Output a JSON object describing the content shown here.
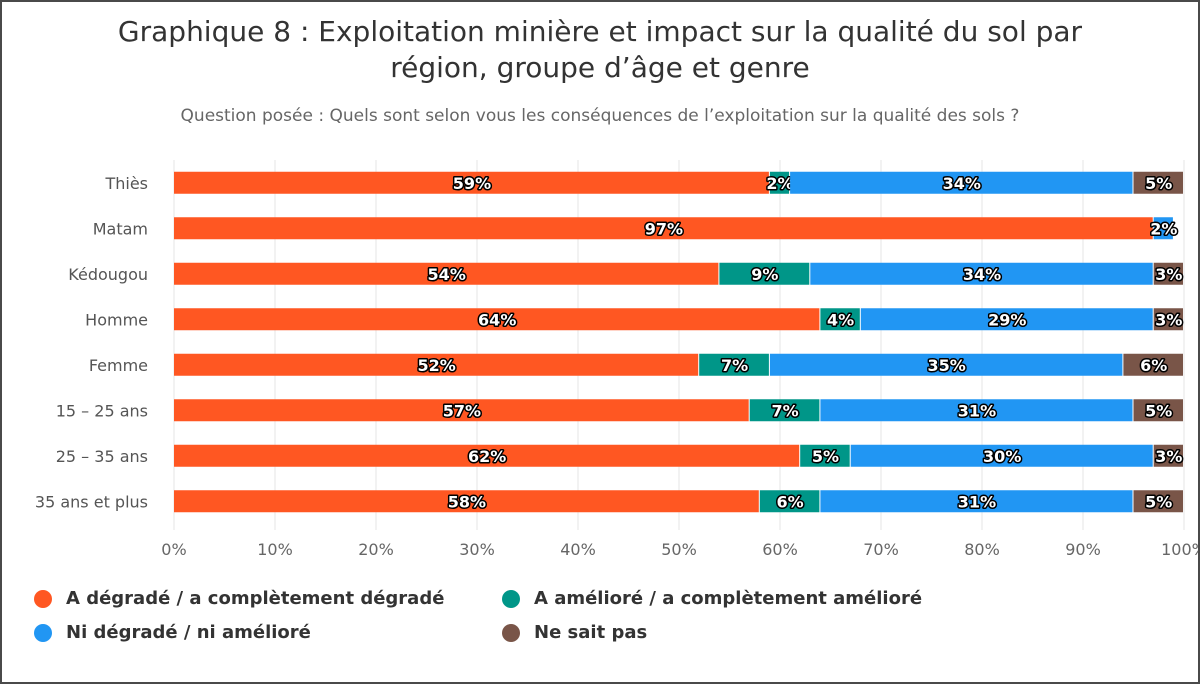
{
  "chart_data": {
    "type": "bar",
    "orientation": "horizontal",
    "stacked": true,
    "title": "Graphique 8 : Exploitation minière et impact sur la qualité du sol par région, groupe d’âge et genre",
    "title_lines": [
      "Graphique 8 : Exploitation minière et impact sur la qualité du sol par",
      "région, groupe d’âge et genre"
    ],
    "subtitle": "Question posée : Quels sont selon vous les conséquences de l’exploitation sur la qualité des sols ?",
    "xlabel": "",
    "ylabel": "",
    "xlim": [
      0,
      100
    ],
    "x_ticks": [
      "0%",
      "10%",
      "20%",
      "30%",
      "40%",
      "50%",
      "60%",
      "70%",
      "80%",
      "90%",
      "100%"
    ],
    "grid": true,
    "legend_position": "bottom-left",
    "categories": [
      "Thiès",
      "Matam",
      "Kédougou",
      "Homme",
      "Femme",
      "15 – 25 ans",
      "25 – 35 ans",
      "35 ans et plus"
    ],
    "series": [
      {
        "name": "A dégradé / a complètement dégradé",
        "color": "#FF5722",
        "values": [
          59,
          97,
          54,
          64,
          52,
          57,
          62,
          58
        ]
      },
      {
        "name": "A amélioré / a complètement amélioré",
        "color": "#009688",
        "values": [
          2,
          0,
          9,
          4,
          7,
          7,
          5,
          6
        ]
      },
      {
        "name": "Ni dégradé / ni amélioré",
        "color": "#2196F3",
        "values": [
          34,
          2,
          34,
          29,
          35,
          31,
          30,
          31
        ]
      },
      {
        "name": "Ne sait pas",
        "color": "#795548",
        "values": [
          5,
          0,
          3,
          3,
          6,
          5,
          3,
          5
        ]
      }
    ],
    "legend_order": [
      0,
      1,
      2,
      3
    ]
  }
}
